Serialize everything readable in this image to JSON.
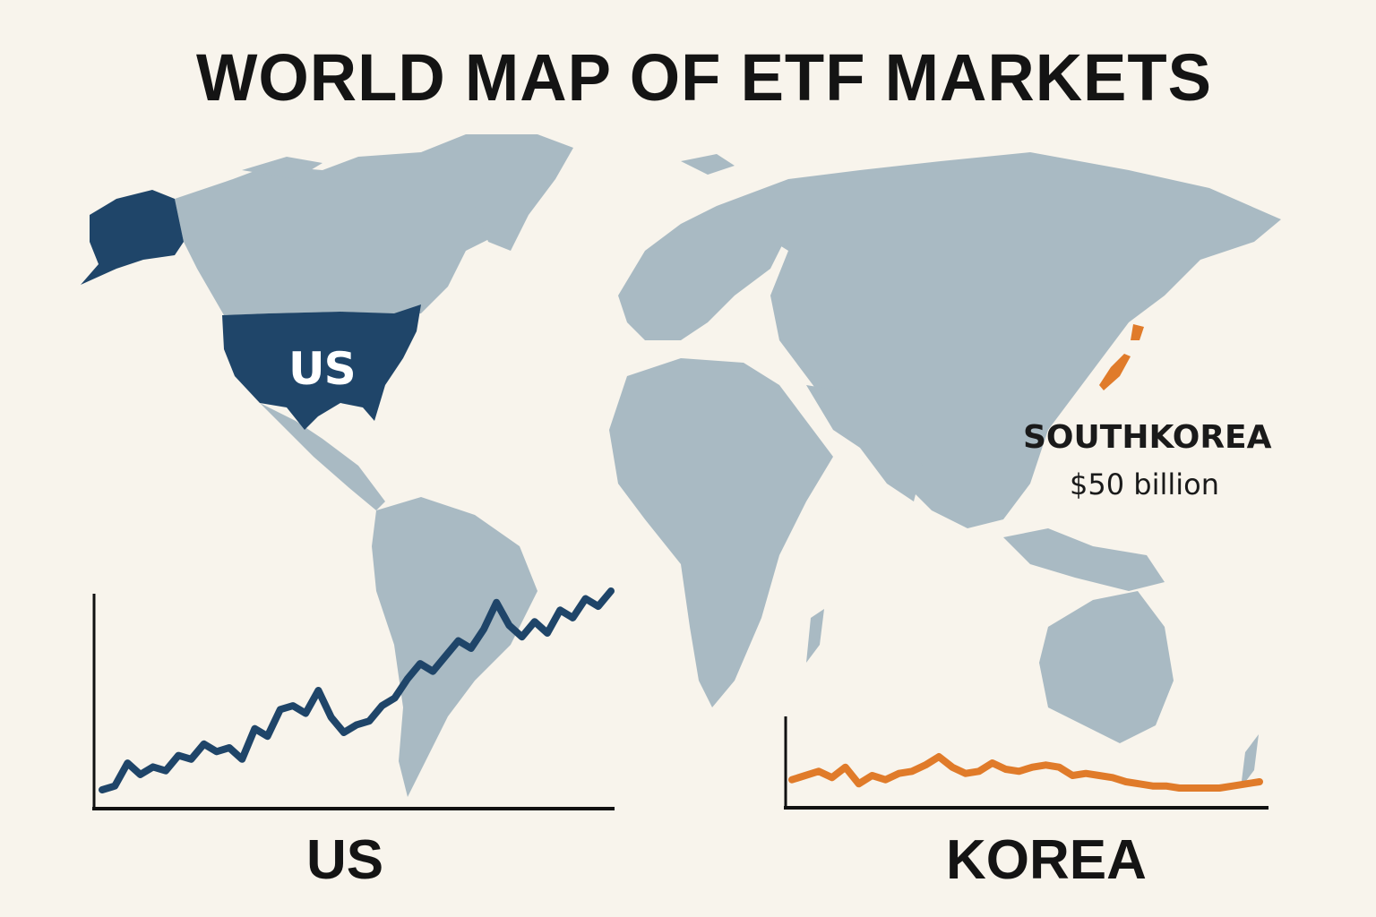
{
  "title": "WORLD MAP OF ETF MARKETS",
  "map": {
    "highlighted_regions": [
      {
        "name": "US",
        "label": "US",
        "color": "#1f4569"
      },
      {
        "name": "South Korea",
        "label": "SOUTHKOREA",
        "value": "$50 billion",
        "color": "#e07b2a"
      }
    ],
    "land_color": "#a9bac3",
    "ocean_color": "#f8f4ec"
  },
  "chart_data": [
    {
      "type": "line",
      "title": "US",
      "xlabel": "",
      "ylabel": "",
      "color": "#1f4569",
      "x": [
        0,
        1,
        2,
        3,
        4,
        5,
        6,
        7,
        8,
        9,
        10,
        11,
        12,
        13,
        14,
        15,
        16,
        17,
        18,
        19,
        20,
        21,
        22,
        23,
        24,
        25,
        26,
        27,
        28,
        29,
        30,
        31,
        32,
        33,
        34,
        35,
        36,
        37,
        38,
        39,
        40
      ],
      "values": [
        5,
        6,
        12,
        9,
        11,
        10,
        14,
        13,
        17,
        15,
        16,
        13,
        21,
        19,
        26,
        27,
        25,
        31,
        24,
        20,
        22,
        23,
        27,
        29,
        34,
        38,
        36,
        40,
        44,
        42,
        47,
        54,
        48,
        45,
        49,
        46,
        52,
        50,
        55,
        53,
        57
      ],
      "grid": false,
      "axes": "left and bottom only, no ticks"
    },
    {
      "type": "line",
      "title": "KOREA",
      "xlabel": "",
      "ylabel": "",
      "color": "#e07b2a",
      "x": [
        0,
        1,
        2,
        3,
        4,
        5,
        6,
        7,
        8,
        9,
        10,
        11,
        12,
        13,
        14,
        15,
        16,
        17,
        18,
        19,
        20,
        21,
        22,
        23,
        24,
        25,
        26,
        27,
        28,
        29,
        30,
        31,
        32,
        33,
        34,
        35
      ],
      "values": [
        22,
        24,
        26,
        23,
        28,
        20,
        24,
        22,
        25,
        26,
        29,
        33,
        28,
        25,
        26,
        30,
        27,
        26,
        28,
        29,
        28,
        24,
        25,
        24,
        23,
        21,
        20,
        19,
        19,
        18,
        18,
        18,
        18,
        19,
        20,
        21
      ],
      "grid": false,
      "axes": "left and bottom only, no ticks"
    }
  ],
  "labels": {
    "us_map": "US",
    "korea_name": "SOUTHKOREA",
    "korea_value": "$50 billion",
    "us_chart": "US",
    "korea_chart": "KOREA"
  }
}
